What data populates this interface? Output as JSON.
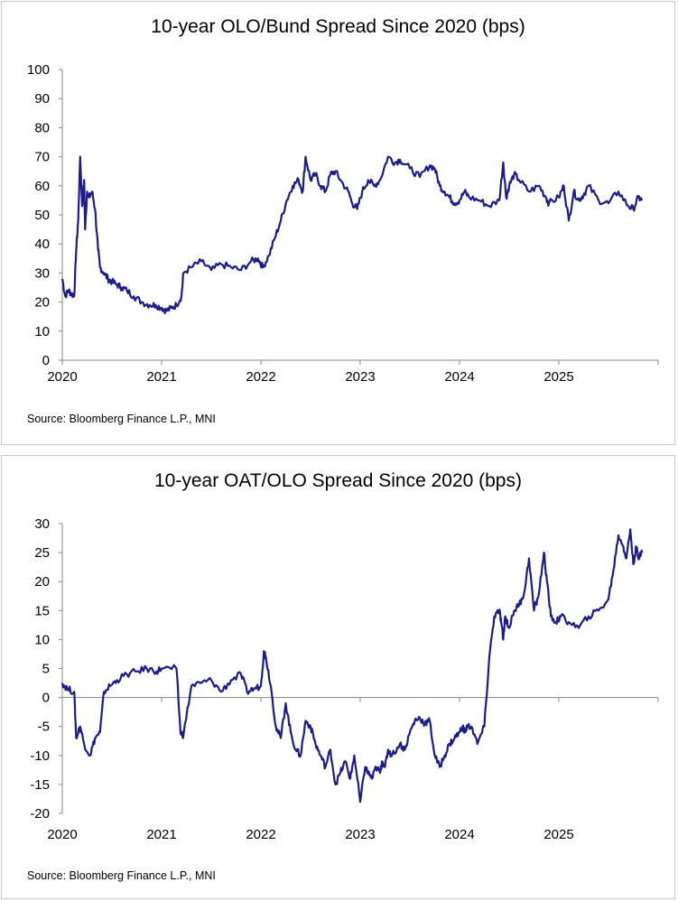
{
  "chart_data": [
    {
      "type": "line",
      "title": "10-year OLO/Bund Spread Since 2020 (bps)",
      "source": "Source: Bloomberg Finance L.P., MNI",
      "xlabel": "",
      "ylabel": "",
      "xlim": [
        2020.0,
        2026.0
      ],
      "ylim": [
        0,
        100
      ],
      "yticks": [
        "0",
        "10",
        "20",
        "30",
        "40",
        "50",
        "60",
        "70",
        "80",
        "90",
        "100"
      ],
      "xticks": [
        "2020",
        "2021",
        "2022",
        "2023",
        "2024",
        "2025"
      ],
      "grid": false,
      "color": "#1c1c8c",
      "series": [
        {
          "x": [
            2020.0,
            2020.03,
            2020.06,
            2020.09,
            2020.12,
            2020.14,
            2020.16,
            2020.18,
            2020.2,
            2020.22,
            2020.23,
            2020.25,
            2020.27,
            2020.3,
            2020.33,
            2020.36,
            2020.38,
            2020.42,
            2020.46,
            2020.5,
            2020.55,
            2020.6,
            2020.65,
            2020.72,
            2020.8,
            2020.88,
            2020.94,
            2021.0,
            2021.05,
            2021.1,
            2021.15,
            2021.2,
            2021.22,
            2021.3,
            2021.4,
            2021.5,
            2021.6,
            2021.7,
            2021.8,
            2021.9,
            2021.97,
            2022.02,
            2022.08,
            2022.14,
            2022.2,
            2022.26,
            2022.32,
            2022.38,
            2022.42,
            2022.45,
            2022.5,
            2022.55,
            2022.6,
            2022.65,
            2022.7,
            2022.75,
            2022.8,
            2022.88,
            2022.92,
            2022.97,
            2023.02,
            2023.08,
            2023.14,
            2023.2,
            2023.28,
            2023.35,
            2023.4,
            2023.5,
            2023.6,
            2023.7,
            2023.75,
            2023.8,
            2023.85,
            2023.9,
            2023.95,
            2024.0,
            2024.05,
            2024.1,
            2024.2,
            2024.3,
            2024.4,
            2024.44,
            2024.47,
            2024.5,
            2024.55,
            2024.6,
            2024.7,
            2024.8,
            2024.87,
            2024.9,
            2025.0,
            2025.05,
            2025.1,
            2025.15,
            2025.2,
            2025.25,
            2025.3,
            2025.4,
            2025.5,
            2025.6,
            2025.7,
            2025.75,
            2025.8,
            2025.84
          ],
          "y": [
            28,
            22,
            24,
            23,
            22,
            38,
            48,
            70,
            53,
            62,
            45,
            58,
            56,
            58,
            52,
            38,
            32,
            30,
            28,
            27,
            26,
            25,
            24,
            22,
            20,
            19,
            19,
            18,
            17,
            18,
            19,
            22,
            30,
            32,
            34,
            31,
            33,
            32,
            31,
            34,
            35,
            32,
            36,
            42,
            48,
            55,
            60,
            62,
            58,
            70,
            62,
            64,
            60,
            58,
            64,
            65,
            62,
            58,
            54,
            52,
            58,
            62,
            60,
            62,
            70,
            68,
            69,
            66,
            63,
            67,
            66,
            60,
            58,
            56,
            54,
            55,
            58,
            56,
            55,
            53,
            55,
            68,
            56,
            60,
            64,
            62,
            58,
            60,
            56,
            54,
            56,
            60,
            48,
            58,
            55,
            57,
            60,
            55,
            54,
            58,
            53,
            52,
            56,
            55
          ]
        }
      ]
    },
    {
      "type": "line",
      "title": "10-year OAT/OLO Spread Since 2020 (bps)",
      "source": "Source: Bloomberg Finance L.P., MNI",
      "xlabel": "",
      "ylabel": "",
      "xlim": [
        2020.0,
        2026.0
      ],
      "ylim": [
        -20,
        30
      ],
      "yticks": [
        "-20",
        "-15",
        "-10",
        "-5",
        "0",
        "5",
        "10",
        "15",
        "20",
        "25",
        "30"
      ],
      "xticks": [
        "2020",
        "2021",
        "2022",
        "2023",
        "2024",
        "2025"
      ],
      "grid": false,
      "color": "#1c1c8c",
      "series": [
        {
          "x": [
            2020.0,
            2020.05,
            2020.12,
            2020.14,
            2020.18,
            2020.22,
            2020.28,
            2020.33,
            2020.38,
            2020.42,
            2020.48,
            2020.55,
            2020.65,
            2020.75,
            2020.85,
            2020.95,
            2021.0,
            2021.15,
            2021.19,
            2021.22,
            2021.3,
            2021.4,
            2021.5,
            2021.6,
            2021.7,
            2021.8,
            2021.86,
            2021.93,
            2022.0,
            2022.03,
            2022.05,
            2022.1,
            2022.15,
            2022.2,
            2022.25,
            2022.3,
            2022.35,
            2022.4,
            2022.45,
            2022.5,
            2022.55,
            2022.6,
            2022.65,
            2022.7,
            2022.75,
            2022.8,
            2022.85,
            2022.9,
            2022.94,
            2023.0,
            2023.05,
            2023.08,
            2023.12,
            2023.16,
            2023.2,
            2023.22,
            2023.25,
            2023.28,
            2023.32,
            2023.4,
            2023.45,
            2023.5,
            2023.55,
            2023.6,
            2023.65,
            2023.7,
            2023.75,
            2023.8,
            2023.85,
            2023.9,
            2023.95,
            2024.0,
            2024.03,
            2024.05,
            2024.08,
            2024.12,
            2024.18,
            2024.25,
            2024.3,
            2024.35,
            2024.4,
            2024.42,
            2024.44,
            2024.46,
            2024.5,
            2024.55,
            2024.6,
            2024.65,
            2024.7,
            2024.75,
            2024.8,
            2024.85,
            2024.88,
            2024.92,
            2024.97,
            2025.02,
            2025.1,
            2025.2,
            2025.3,
            2025.4,
            2025.5,
            2025.55,
            2025.6,
            2025.65,
            2025.68,
            2025.72,
            2025.75,
            2025.78,
            2025.8,
            2025.82,
            2025.84
          ],
          "y": [
            2.5,
            1.5,
            1,
            -7,
            -5,
            -8,
            -10,
            -7,
            -6,
            1,
            2,
            3,
            4,
            4.5,
            5,
            4.5,
            5,
            5,
            -6,
            -6.5,
            2,
            2.5,
            3,
            1,
            3,
            4,
            1,
            1.5,
            2,
            8,
            7,
            2,
            -5,
            -7,
            -1,
            -6,
            -9,
            -10,
            -4,
            -5,
            -8,
            -10,
            -12,
            -9,
            -15,
            -13,
            -11,
            -14,
            -10,
            -18,
            -12,
            -13,
            -14,
            -12,
            -13,
            -11,
            -12,
            -9,
            -10,
            -8,
            -9,
            -6,
            -4,
            -3.5,
            -4.5,
            -4,
            -10,
            -12,
            -10,
            -8,
            -7,
            -6,
            -5,
            -6,
            -5,
            -5,
            -8,
            -5,
            7,
            14,
            15,
            13,
            10,
            14,
            12,
            15,
            16,
            18,
            24,
            15,
            18,
            25,
            20,
            14,
            13,
            14,
            13,
            12,
            14,
            15,
            17,
            22,
            28,
            26,
            24,
            29,
            23,
            26,
            24,
            25,
            25
          ]
        }
      ]
    }
  ]
}
